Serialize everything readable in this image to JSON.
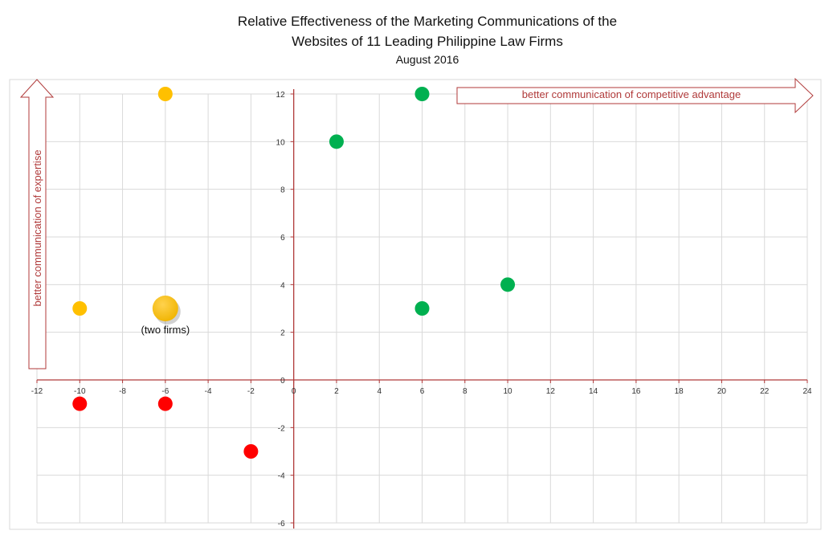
{
  "chart_data": {
    "type": "scatter",
    "title_lines": [
      "Relative Effectiveness of the Marketing Communications of the",
      "Websites of 11 Leading Philippine Law Firms"
    ],
    "subtitle": "August 2016",
    "xlim": [
      -12,
      24
    ],
    "ylim": [
      -6,
      12
    ],
    "x_ticks": [
      -12,
      -10,
      -8,
      -6,
      -4,
      -2,
      0,
      2,
      4,
      6,
      8,
      10,
      12,
      14,
      16,
      18,
      20,
      22,
      24
    ],
    "y_ticks": [
      -6,
      -4,
      -2,
      0,
      2,
      4,
      6,
      8,
      10,
      12
    ],
    "grid": true,
    "colors": {
      "green": "#00b050",
      "yellow": "#ffc000",
      "red": "#ff0000",
      "axis": "#b03a3a",
      "grid": "#d9d9d9"
    },
    "points": [
      {
        "x": -6,
        "y": 12,
        "color": "yellow",
        "size": "normal"
      },
      {
        "x": -10,
        "y": 3,
        "color": "yellow",
        "size": "normal"
      },
      {
        "x": -6,
        "y": 3,
        "color": "yellow",
        "size": "large",
        "label": "(two firms)"
      },
      {
        "x": 2,
        "y": 10,
        "color": "green",
        "size": "normal"
      },
      {
        "x": 6,
        "y": 12,
        "color": "green",
        "size": "normal"
      },
      {
        "x": 6,
        "y": 3,
        "color": "green",
        "size": "normal"
      },
      {
        "x": 10,
        "y": 4,
        "color": "green",
        "size": "normal"
      },
      {
        "x": -10,
        "y": -1,
        "color": "red",
        "size": "normal"
      },
      {
        "x": -6,
        "y": -1,
        "color": "red",
        "size": "normal"
      },
      {
        "x": -2,
        "y": -3,
        "color": "red",
        "size": "normal"
      }
    ],
    "arrow_labels": {
      "horizontal": "better communication of competitive advantage",
      "vertical": "better communication of expertise"
    }
  }
}
